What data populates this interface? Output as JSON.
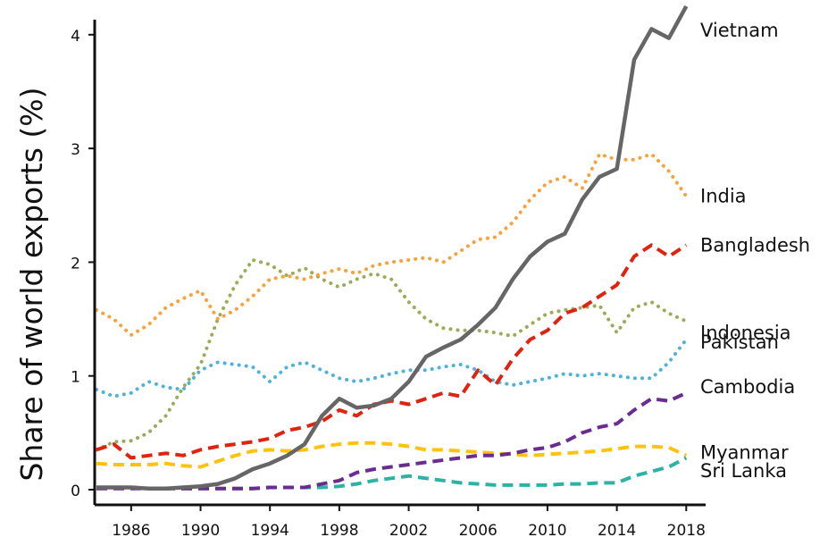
{
  "chart_data": {
    "type": "line",
    "title": "",
    "xlabel": "",
    "ylabel": "Share of world exports (%)",
    "xlim": [
      1984,
      2018.5
    ],
    "ylim": [
      0,
      4.25
    ],
    "xticks": [
      1986,
      1990,
      1994,
      1998,
      2002,
      2006,
      2010,
      2014,
      2018
    ],
    "xtick_labels": [
      "1986",
      "1990",
      "1994",
      "1998",
      "2002",
      "2006",
      "2010",
      "2014",
      "2018"
    ],
    "yticks": [
      0,
      1,
      2,
      3,
      4
    ],
    "ytick_labels": [
      "0",
      "1",
      "2",
      "3",
      "4"
    ],
    "grid": false,
    "x": [
      1984,
      1985,
      1986,
      1987,
      1988,
      1989,
      1990,
      1991,
      1992,
      1993,
      1994,
      1995,
      1996,
      1997,
      1998,
      1999,
      2000,
      2001,
      2002,
      2003,
      2004,
      2005,
      2006,
      2007,
      2008,
      2009,
      2010,
      2011,
      2012,
      2013,
      2014,
      2015,
      2016,
      2017,
      2018
    ],
    "series": [
      {
        "name": "Vietnam",
        "label": "Vietnam",
        "color": "#666666",
        "style": "solid",
        "values": [
          0.02,
          0.02,
          0.02,
          0.01,
          0.01,
          0.02,
          0.03,
          0.05,
          0.1,
          0.18,
          0.23,
          0.3,
          0.4,
          0.65,
          0.8,
          0.72,
          0.74,
          0.8,
          0.95,
          1.17,
          1.25,
          1.32,
          1.45,
          1.6,
          1.85,
          2.05,
          2.18,
          2.25,
          2.55,
          2.75,
          2.82,
          3.78,
          4.05,
          3.97,
          4.25
        ]
      },
      {
        "name": "India",
        "label": "India",
        "color": "#F7A23B",
        "style": "dotted",
        "values": [
          1.58,
          1.5,
          1.36,
          1.45,
          1.6,
          1.68,
          1.75,
          1.5,
          1.58,
          1.7,
          1.85,
          1.88,
          1.85,
          1.9,
          1.94,
          1.9,
          1.97,
          2.0,
          2.02,
          2.04,
          2.0,
          2.1,
          2.2,
          2.22,
          2.35,
          2.55,
          2.7,
          2.75,
          2.65,
          2.95,
          2.9,
          2.9,
          2.95,
          2.8,
          2.58
        ]
      },
      {
        "name": "Bangladesh",
        "label": "Bangladesh",
        "color": "#E0230F",
        "style": "dashed",
        "values": [
          0.35,
          0.4,
          0.28,
          0.3,
          0.32,
          0.3,
          0.35,
          0.38,
          0.4,
          0.42,
          0.45,
          0.52,
          0.55,
          0.6,
          0.7,
          0.65,
          0.75,
          0.78,
          0.75,
          0.8,
          0.85,
          0.82,
          1.05,
          0.92,
          1.15,
          1.32,
          1.4,
          1.55,
          1.6,
          1.7,
          1.8,
          2.05,
          2.15,
          2.05,
          2.15
        ]
      },
      {
        "name": "Indonesia",
        "label": "Indonesia",
        "color": "#9AAC5A",
        "style": "dotted",
        "values": [
          0.35,
          0.42,
          0.43,
          0.5,
          0.65,
          0.9,
          1.1,
          1.5,
          1.8,
          2.02,
          1.98,
          1.88,
          1.95,
          1.85,
          1.78,
          1.85,
          1.9,
          1.85,
          1.65,
          1.5,
          1.42,
          1.4,
          1.4,
          1.38,
          1.35,
          1.45,
          1.55,
          1.58,
          1.6,
          1.62,
          1.38,
          1.6,
          1.65,
          1.55,
          1.48
        ]
      },
      {
        "name": "Pakistan",
        "label": "Pakistan",
        "color": "#4FB3D9",
        "style": "dotted",
        "values": [
          0.88,
          0.82,
          0.85,
          0.95,
          0.9,
          0.88,
          1.05,
          1.12,
          1.1,
          1.08,
          0.95,
          1.08,
          1.12,
          1.05,
          0.98,
          0.95,
          0.98,
          1.02,
          1.05,
          1.05,
          1.08,
          1.1,
          1.05,
          0.95,
          0.92,
          0.95,
          0.98,
          1.02,
          1.0,
          1.02,
          1.0,
          0.98,
          0.98,
          1.12,
          1.32
        ]
      },
      {
        "name": "Cambodia",
        "label": "Cambodia",
        "color": "#6A2C91",
        "style": "dashed",
        "values": [
          0.01,
          0.01,
          0.01,
          0.01,
          0.01,
          0.01,
          0.01,
          0.01,
          0.01,
          0.01,
          0.02,
          0.02,
          0.02,
          0.05,
          0.08,
          0.15,
          0.18,
          0.2,
          0.22,
          0.24,
          0.26,
          0.28,
          0.3,
          0.3,
          0.32,
          0.35,
          0.37,
          0.42,
          0.5,
          0.55,
          0.58,
          0.7,
          0.8,
          0.78,
          0.85
        ]
      },
      {
        "name": "Sri Lanka",
        "label": "Sri Lanka",
        "color": "#FFC20E",
        "style": "dashed",
        "values": [
          0.23,
          0.22,
          0.22,
          0.22,
          0.23,
          0.21,
          0.2,
          0.25,
          0.3,
          0.34,
          0.35,
          0.34,
          0.35,
          0.38,
          0.4,
          0.41,
          0.41,
          0.4,
          0.38,
          0.35,
          0.35,
          0.34,
          0.33,
          0.32,
          0.31,
          0.3,
          0.31,
          0.32,
          0.33,
          0.34,
          0.36,
          0.38,
          0.38,
          0.37,
          0.3
        ]
      },
      {
        "name": "Myanmar",
        "label": "Myanmar",
        "color": "#2BB3A6",
        "style": "dashed",
        "values": [
          0.02,
          0.02,
          0.02,
          0.01,
          0.01,
          0.01,
          0.01,
          0.01,
          0.01,
          0.01,
          0.02,
          0.02,
          0.02,
          0.02,
          0.03,
          0.05,
          0.08,
          0.1,
          0.12,
          0.1,
          0.08,
          0.06,
          0.05,
          0.04,
          0.04,
          0.04,
          0.04,
          0.05,
          0.05,
          0.06,
          0.06,
          0.12,
          0.16,
          0.2,
          0.28
        ]
      }
    ]
  }
}
